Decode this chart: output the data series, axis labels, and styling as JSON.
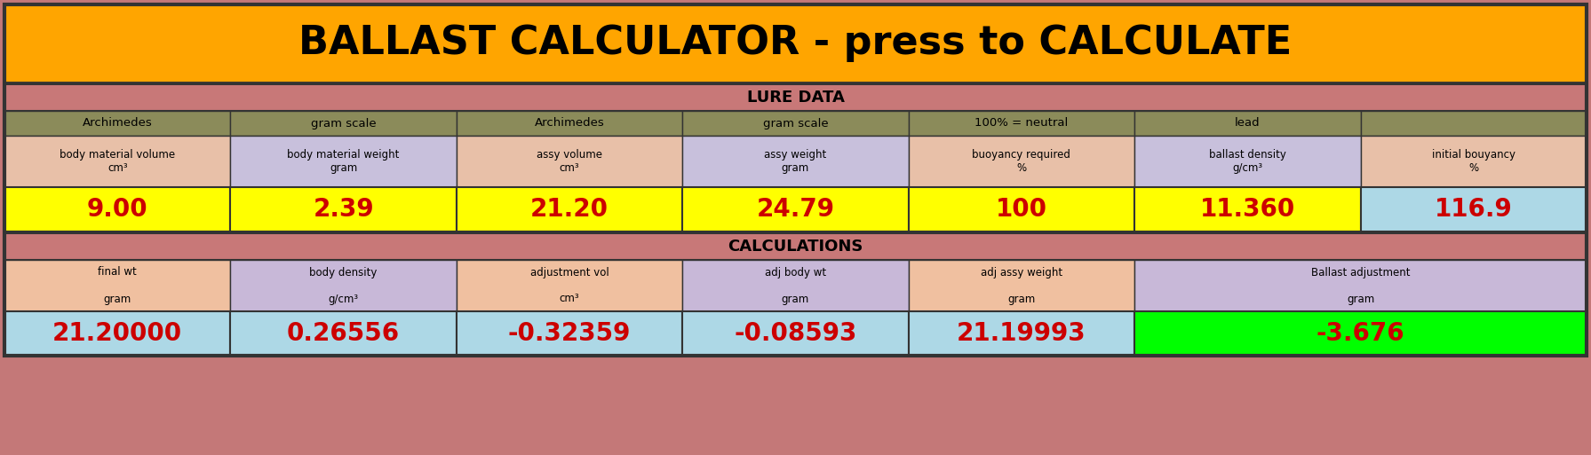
{
  "title": "BALLAST CALCULATOR - press to CALCULATE",
  "title_bg": "#FFA500",
  "title_fg": "#000000",
  "outer_bg": "#C47878",
  "section1_label": "LURE DATA",
  "section2_label": "CALCULATIONS",
  "header1_row1": [
    "Archimedes",
    "gram scale",
    "Archimedes",
    "gram scale",
    "100% = neutral",
    "lead",
    ""
  ],
  "header1_row2": [
    "body material volume\ncm³",
    "body material weight\ngram",
    "assy volume\ncm³",
    "assy weight\ngram",
    "buoyancy required\n%",
    "ballast density\ng/cm³",
    "initial bouyancy\n%"
  ],
  "data1_values": [
    "9.00",
    "2.39",
    "21.20",
    "24.79",
    "100",
    "11.360",
    "116.9"
  ],
  "data1_colors": [
    "#FFFF00",
    "#FFFF00",
    "#FFFF00",
    "#FFFF00",
    "#FFFF00",
    "#FFFF00",
    "#ADD8E6"
  ],
  "header2_row1_line1": [
    "final wt",
    "body density",
    "adjustment vol",
    "adj body wt",
    "adj assy weight",
    "Ballast adjustment"
  ],
  "header2_row1_line2": [
    "gram",
    "g/cm³",
    "cm³",
    "gram",
    "gram",
    "gram"
  ],
  "data2_values": [
    "21.20000",
    "0.26556",
    "-0.32359",
    "-0.08593",
    "21.19993",
    "-3.676"
  ],
  "data2_colors": [
    "#ADD8E6",
    "#ADD8E6",
    "#ADD8E6",
    "#ADD8E6",
    "#ADD8E6",
    "#00FF00"
  ],
  "header_row1_bg": "#8B8B5A",
  "header_row2_bg_odd": "#E8C0A8",
  "header_row2_bg_even": "#C8C0DC",
  "section_header_bg": "#C87878",
  "calc_header_bg": "#C87878",
  "calc_header_row_bg_odd": "#F0C0A0",
  "calc_header_row_bg_even": "#C8B8D8",
  "border_color": "#333333",
  "data_text_color": "#CC0000"
}
